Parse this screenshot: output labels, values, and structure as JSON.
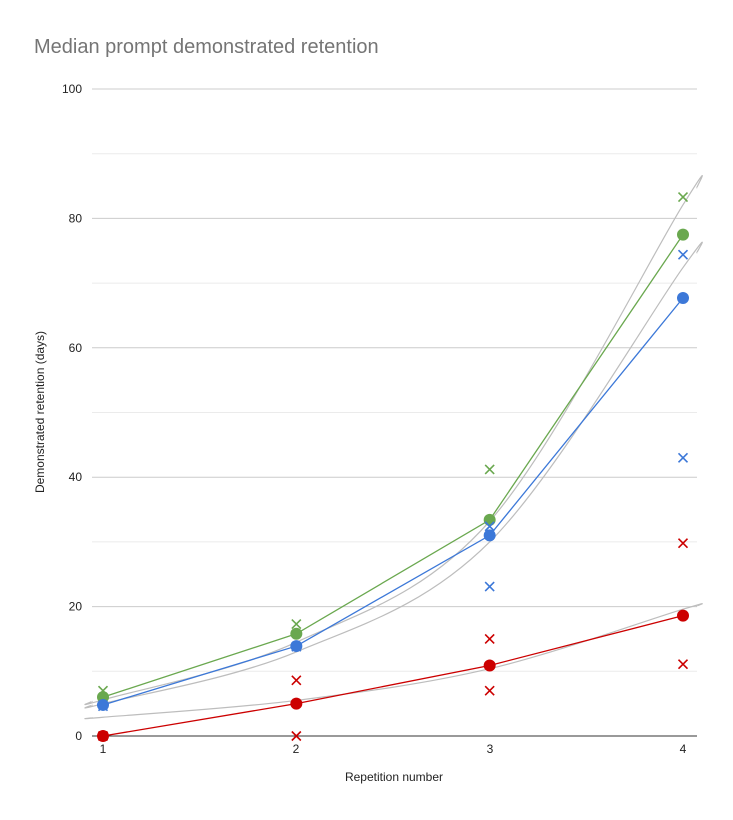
{
  "chart_data": {
    "type": "line",
    "title": "Median prompt demonstrated retention",
    "xlabel": "Repetition number",
    "ylabel": "Demonstrated retention (days)",
    "x": [
      1,
      2,
      3,
      4
    ],
    "xlim": [
      1,
      4
    ],
    "ylim": [
      0,
      100
    ],
    "x_ticks": [
      "1",
      "2",
      "3",
      "4"
    ],
    "y_ticks": [
      "0",
      "20",
      "40",
      "60",
      "80",
      "100"
    ],
    "grid": true,
    "legend": "none",
    "series": [
      {
        "name": "green",
        "color": "#6aa84f",
        "marker": "circle",
        "values": [
          6.0,
          15.8,
          33.4,
          77.5
        ],
        "x_markers": [
          7.0,
          17.3,
          41.2,
          83.3
        ],
        "trendline": [
          5.6,
          14.5,
          33.2,
          82.1
        ]
      },
      {
        "name": "blue",
        "color": "#3c78d8",
        "marker": "circle",
        "values": [
          4.8,
          13.9,
          31.0,
          67.7
        ],
        "x_markers": [
          4.6,
          13.8,
          23.1,
          74.4
        ],
        "x_markers_extra": [
          null,
          null,
          32.4,
          43.0
        ],
        "trendline": [
          5.0,
          13.0,
          30.0,
          72.4
        ]
      },
      {
        "name": "red",
        "color": "#cc0000",
        "marker": "circle",
        "values": [
          0.0,
          5.0,
          10.9,
          18.6
        ],
        "x_markers": [
          0.0,
          8.6,
          15.0,
          29.8
        ],
        "x_markers_low": [
          null,
          0.0,
          7.0,
          11.1
        ],
        "trendline": [
          2.9,
          5.5,
          10.4,
          19.6
        ]
      }
    ]
  }
}
